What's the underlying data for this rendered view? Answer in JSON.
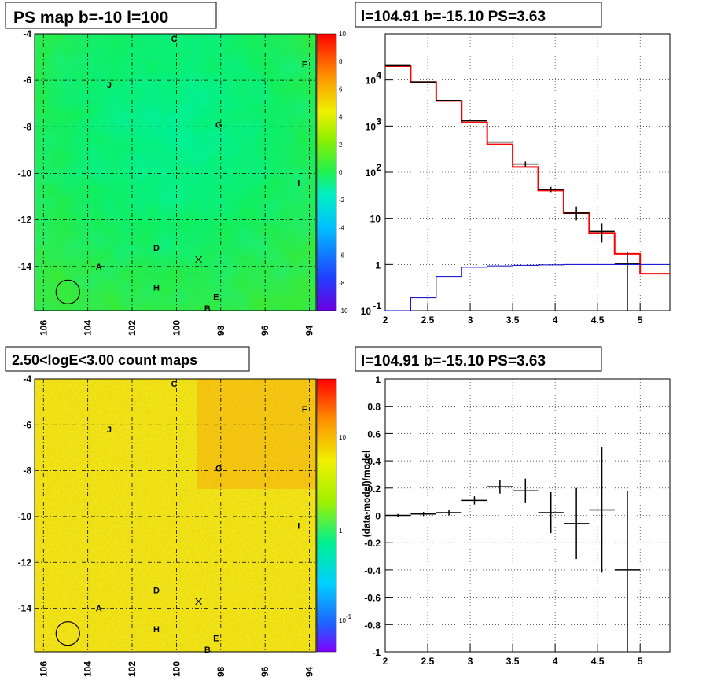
{
  "panels": {
    "tl_title": "PS map b=-10 l=100",
    "tr_title": "l=104.91 b=-15.10 PS=3.63",
    "bl_title": "2.50<logE<3.00 count maps",
    "br_title": "l=104.91 b=-15.10 PS=3.63"
  },
  "maps": {
    "x_ticks": [
      "106",
      "104",
      "102",
      "100",
      "98",
      "96",
      "94"
    ],
    "y_ticks": [
      "-4",
      "-6",
      "-8",
      "-10",
      "-12",
      "-14"
    ],
    "sources": [
      {
        "name": "C",
        "l": 100.1,
        "b": -4.2
      },
      {
        "name": "F",
        "l": 94.2,
        "b": -5.3
      },
      {
        "name": "J",
        "l": 103.0,
        "b": -6.2
      },
      {
        "name": "G",
        "l": 98.1,
        "b": -7.9
      },
      {
        "name": "I",
        "l": 94.4,
        "b": -10.4
      },
      {
        "name": "D",
        "l": 100.9,
        "b": -13.2
      },
      {
        "name": "A",
        "l": 103.5,
        "b": -14.0
      },
      {
        "name": "H",
        "l": 100.9,
        "b": -14.9
      },
      {
        "name": "E",
        "l": 98.2,
        "b": -15.3
      },
      {
        "name": "B",
        "l": 98.6,
        "b": -15.8
      }
    ],
    "cross": {
      "l": 99.0,
      "b": -13.7
    },
    "circle": {
      "l": 104.9,
      "b": -15.1
    }
  },
  "ps_colorbar": {
    "labels": [
      "10",
      "8",
      "6",
      "4",
      "2",
      "0",
      "-2",
      "-4",
      "-6",
      "-8",
      "-10"
    ]
  },
  "count_colorbar": {
    "labels": [
      "10",
      "1",
      "10",
      "-1"
    ]
  },
  "chart_data": [
    {
      "type": "line",
      "title": "l=104.91 b=-15.10 PS=3.63",
      "xlim": [
        2,
        5.35
      ],
      "ylim": [
        0.1,
        100000
      ],
      "log_y": true,
      "grid": true,
      "x_ticks": [
        "2",
        "2.5",
        "3",
        "3.5",
        "4",
        "4.5",
        "5"
      ],
      "y_ticks": [
        {
          "base": "10",
          "exp": "-1",
          "v": 0.1
        },
        {
          "base": "1",
          "exp": "",
          "v": 1
        },
        {
          "base": "10",
          "exp": "",
          "v": 10
        },
        {
          "base": "10",
          "exp": "2",
          "v": 100
        },
        {
          "base": "10",
          "exp": "3",
          "v": 1000
        },
        {
          "base": "10",
          "exp": "4",
          "v": 10000
        }
      ],
      "series": [
        {
          "color": "#ff0000",
          "bins": [
            [
              2.0,
              2.3,
              20000
            ],
            [
              2.3,
              2.6,
              9000
            ],
            [
              2.6,
              2.9,
              3500
            ],
            [
              2.9,
              3.2,
              1200
            ],
            [
              3.2,
              3.5,
              400
            ],
            [
              3.5,
              3.8,
              130
            ],
            [
              3.8,
              4.1,
              40
            ],
            [
              4.1,
              4.4,
              13
            ],
            [
              4.4,
              4.7,
              4.8
            ],
            [
              4.7,
              5.0,
              1.7
            ],
            [
              5.0,
              5.35,
              0.63
            ]
          ]
        },
        {
          "color": "#0000cc",
          "bins": [
            [
              2.0,
              2.3,
              0.1
            ],
            [
              2.3,
              2.6,
              0.19
            ],
            [
              2.6,
              2.9,
              0.55
            ],
            [
              2.9,
              3.2,
              0.87
            ],
            [
              3.2,
              3.5,
              0.93
            ],
            [
              3.5,
              3.8,
              0.96
            ],
            [
              3.8,
              4.1,
              0.98
            ],
            [
              4.1,
              4.4,
              1.0
            ],
            [
              4.4,
              4.7,
              1.0
            ],
            [
              4.7,
              5.0,
              1.0
            ],
            [
              5.0,
              5.35,
              1.0
            ]
          ]
        },
        {
          "color": "#000000",
          "points": [
            [
              2.15,
              20500,
              0,
              0
            ],
            [
              2.45,
              9100,
              0,
              0
            ],
            [
              2.75,
              3600,
              0,
              0
            ],
            [
              3.05,
              1300,
              0,
              0
            ],
            [
              3.35,
              450,
              0,
              0
            ],
            [
              3.65,
              150,
              20,
              20
            ],
            [
              3.95,
              42,
              6,
              5
            ],
            [
              4.25,
              13,
              5,
              4
            ],
            [
              4.55,
              5.2,
              2.5,
              2.2
            ],
            [
              4.85,
              1.05,
              0.8,
              0.95
            ]
          ]
        }
      ]
    },
    {
      "type": "scatter",
      "title": "l=104.91 b=-15.10 PS=3.63",
      "ylabel": "(data-model)/model",
      "xlim": [
        2,
        5.35
      ],
      "ylim": [
        -1,
        1
      ],
      "grid": true,
      "x_ticks": [
        "2",
        "2.5",
        "3",
        "3.5",
        "4",
        "4.5",
        "5"
      ],
      "y_ticks": [
        "-1",
        "-0.8",
        "-0.6",
        "-0.4",
        "-0.2",
        "0",
        "0.2",
        "0.4",
        "0.6",
        "0.8",
        "1"
      ],
      "points": [
        [
          2.15,
          0.0,
          0.01
        ],
        [
          2.45,
          0.01,
          0.015
        ],
        [
          2.75,
          0.02,
          0.02
        ],
        [
          3.05,
          0.11,
          0.03
        ],
        [
          3.35,
          0.21,
          0.05
        ],
        [
          3.65,
          0.18,
          0.09
        ],
        [
          3.95,
          0.02,
          0.15
        ],
        [
          4.25,
          -0.06,
          0.26
        ],
        [
          4.55,
          0.04,
          0.46
        ],
        [
          4.85,
          -0.4,
          0.58
        ]
      ]
    }
  ]
}
